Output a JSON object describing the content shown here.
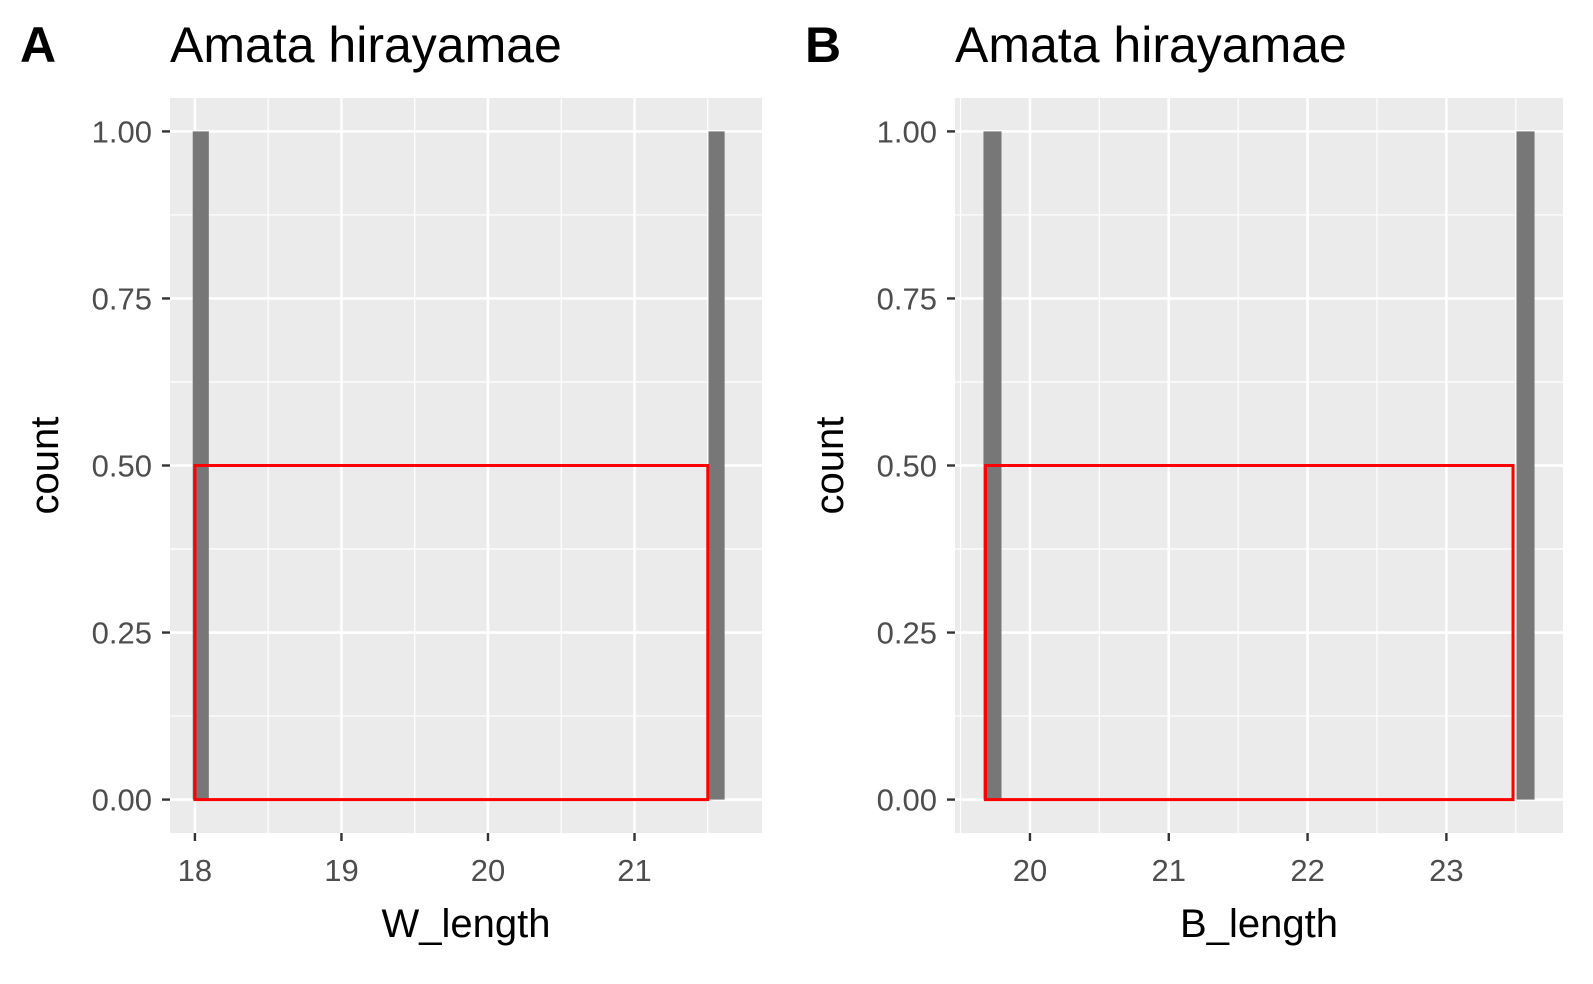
{
  "chart_data": [
    {
      "panel_label": "A",
      "type": "bar",
      "title": "Amata hirayamae",
      "xlabel": "W_length",
      "ylabel": "count",
      "xlim": [
        17.83,
        21.87
      ],
      "ylim": [
        -0.05,
        1.05
      ],
      "x_ticks": [
        18,
        19,
        20,
        21
      ],
      "x_tick_labels": [
        "18",
        "19",
        "20",
        "21"
      ],
      "y_ticks": [
        0,
        0.25,
        0.5,
        0.75,
        1.0
      ],
      "y_tick_labels": [
        "0.00",
        "0.25",
        "0.50",
        "0.75",
        "1.00"
      ],
      "bins": [
        {
          "x": 18.04,
          "width": 0.11,
          "count": 1
        },
        {
          "x": 21.56,
          "width": 0.11,
          "count": 1
        }
      ],
      "highlight_rect": {
        "xmin": 18.0,
        "xmax": 21.5,
        "ymin": 0,
        "ymax": 0.5,
        "color": "#ff0000"
      },
      "bar_color": "#777777",
      "panel_bg": "#ebebeb",
      "grid": true
    },
    {
      "panel_label": "B",
      "type": "bar",
      "title": "Amata hirayamae",
      "xlabel": "B_length",
      "ylabel": "count",
      "xlim": [
        19.46,
        23.84
      ],
      "ylim": [
        -0.05,
        1.05
      ],
      "x_ticks": [
        20,
        21,
        22,
        23
      ],
      "x_tick_labels": [
        "20",
        "21",
        "22",
        "23"
      ],
      "y_ticks": [
        0,
        0.25,
        0.5,
        0.75,
        1.0
      ],
      "y_tick_labels": [
        "0.00",
        "0.25",
        "0.50",
        "0.75",
        "1.00"
      ],
      "bins": [
        {
          "x": 19.73,
          "width": 0.13,
          "count": 1
        },
        {
          "x": 23.57,
          "width": 0.13,
          "count": 1
        }
      ],
      "highlight_rect": {
        "xmin": 19.68,
        "xmax": 23.48,
        "ymin": 0,
        "ymax": 0.5,
        "color": "#ff0000"
      },
      "bar_color": "#777777",
      "panel_bg": "#ebebeb",
      "grid": true
    }
  ]
}
